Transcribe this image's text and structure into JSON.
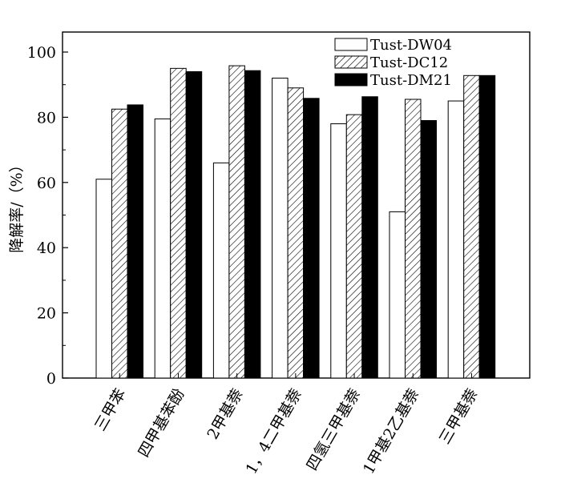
{
  "chart_data": {
    "type": "bar",
    "title": "",
    "xlabel": "",
    "ylabel": "降解率/（%）",
    "ylim": [
      0,
      100
    ],
    "yticks": [
      0,
      20,
      40,
      60,
      80,
      100
    ],
    "grid": false,
    "legend_position": "top-right",
    "categories": [
      "三甲苯",
      "四甲基苯酚",
      "2甲基萘",
      "1，4二甲基萘",
      "四氢三甲基萘",
      "1甲基2乙基萘",
      "三甲基萘"
    ],
    "series": [
      {
        "name": "Tust-DW04",
        "values": [
          61,
          79.5,
          66,
          92,
          78,
          51,
          85
        ],
        "style": "white",
        "color": "#ffffff"
      },
      {
        "name": "Tust-DC12",
        "values": [
          82.5,
          95,
          95.8,
          89,
          80.8,
          85.5,
          92.8
        ],
        "style": "hatched",
        "color": "#ffffff"
      },
      {
        "name": "Tust-DM21",
        "values": [
          83.8,
          94,
          94.3,
          85.8,
          86.3,
          79,
          92.8
        ],
        "style": "solid",
        "color": "#000000"
      }
    ]
  }
}
